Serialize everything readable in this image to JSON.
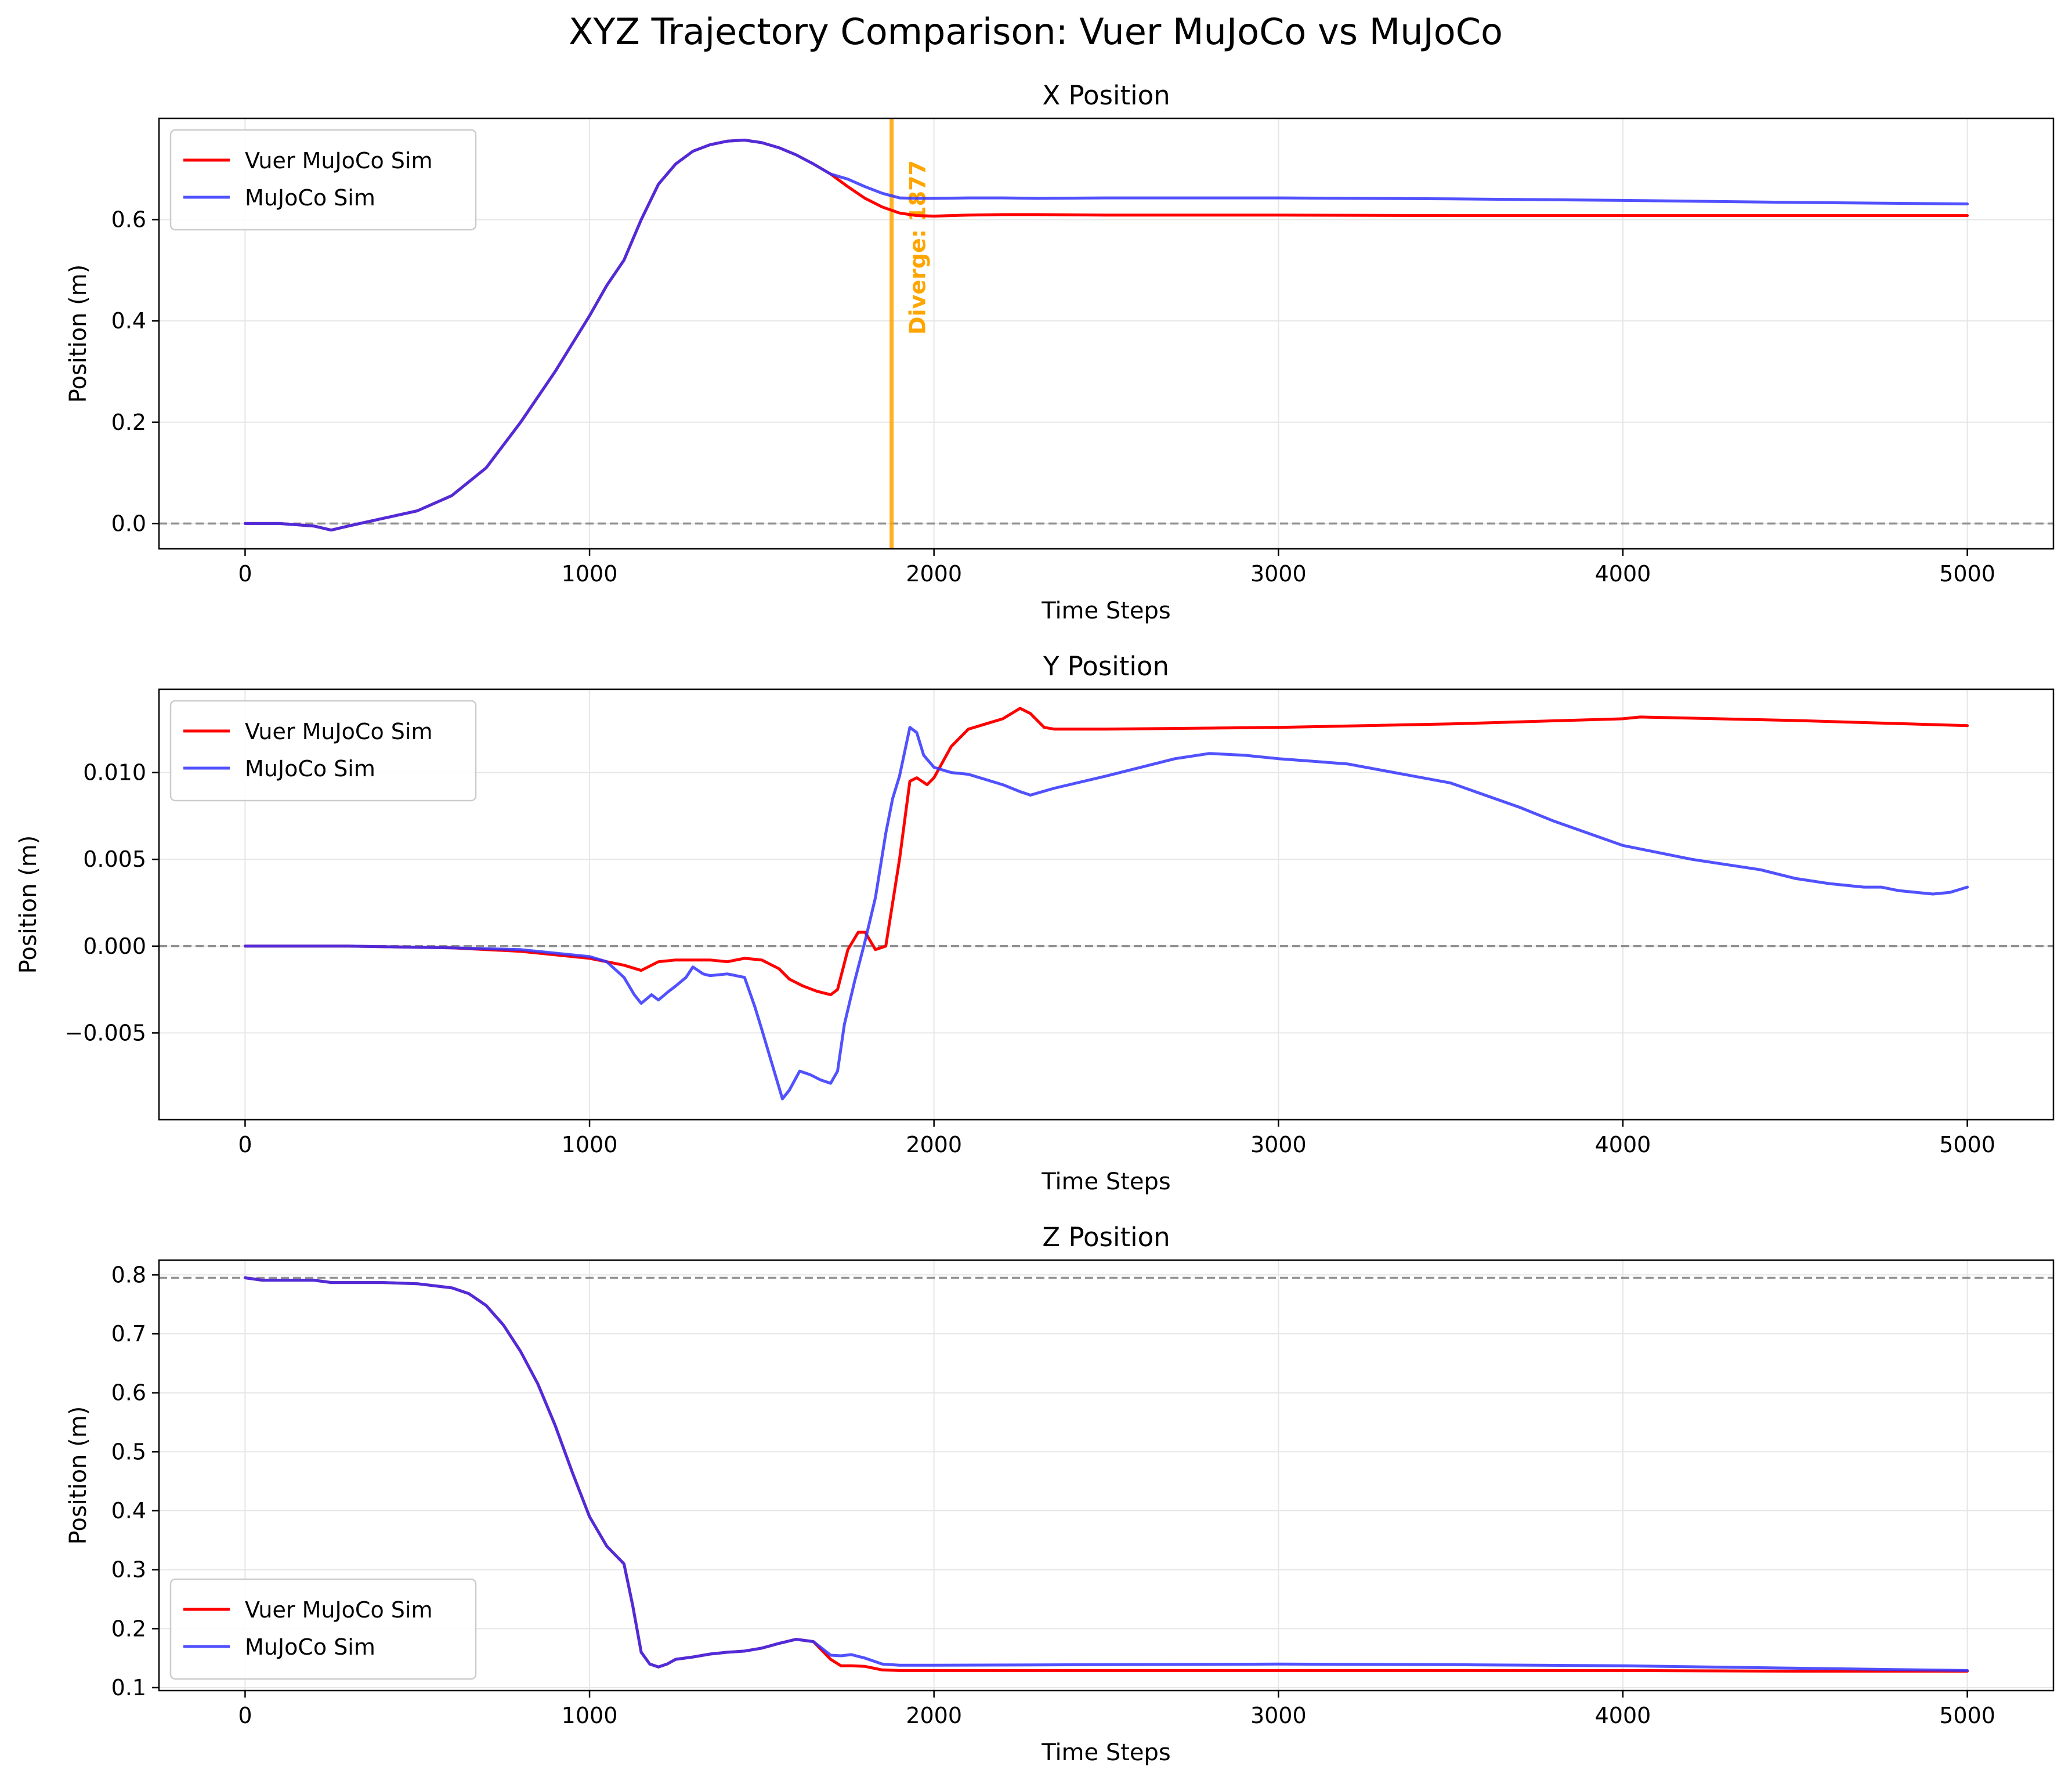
{
  "figure": {
    "title": "XYZ Trajectory Comparison: Vuer MuJoCo vs MuJoCo"
  },
  "colors": {
    "vuer": "#ff0000",
    "mujoco": "#3333ff",
    "overlap": "#5500cc",
    "diverge": "#ffa500",
    "reference": "#808080",
    "grid": "#e6e6e6",
    "axis": "#000000"
  },
  "chart_data": [
    {
      "type": "line",
      "title": "X Position",
      "xlabel": "Time Steps",
      "ylabel": "Position (m)",
      "xlim": [
        -250,
        5250
      ],
      "ylim": [
        -0.05,
        0.8
      ],
      "xticks": [
        0,
        1000,
        2000,
        3000,
        4000,
        5000
      ],
      "yticks": [
        0.0,
        0.2,
        0.4,
        0.6
      ],
      "ytick_labels": [
        "0.0",
        "0.2",
        "0.4",
        "0.6"
      ],
      "grid": true,
      "legend": "upper left",
      "reference_line": {
        "y": 0.0,
        "style": "dashed"
      },
      "vline": {
        "x": 1877,
        "label": "Diverge: 1877"
      },
      "series": [
        {
          "name": "Vuer MuJoCo Sim",
          "x": [
            0,
            100,
            200,
            250,
            300,
            400,
            500,
            600,
            700,
            800,
            900,
            1000,
            1050,
            1100,
            1150,
            1200,
            1250,
            1300,
            1350,
            1400,
            1450,
            1500,
            1550,
            1600,
            1650,
            1700,
            1750,
            1800,
            1850,
            1900,
            1950,
            2000,
            2100,
            2200,
            2300,
            2500,
            3000,
            3500,
            4000,
            4500,
            5000
          ],
          "y": [
            0.0,
            0.0,
            -0.005,
            -0.013,
            -0.005,
            0.01,
            0.025,
            0.055,
            0.11,
            0.2,
            0.3,
            0.41,
            0.47,
            0.52,
            0.6,
            0.67,
            0.71,
            0.735,
            0.748,
            0.755,
            0.757,
            0.752,
            0.742,
            0.728,
            0.71,
            0.69,
            0.665,
            0.642,
            0.625,
            0.613,
            0.608,
            0.607,
            0.609,
            0.61,
            0.61,
            0.609,
            0.609,
            0.608,
            0.608,
            0.608,
            0.608
          ]
        },
        {
          "name": "MuJoCo Sim",
          "x": [
            0,
            100,
            200,
            250,
            300,
            400,
            500,
            600,
            700,
            800,
            900,
            1000,
            1050,
            1100,
            1150,
            1200,
            1250,
            1300,
            1350,
            1400,
            1450,
            1500,
            1550,
            1600,
            1650,
            1700,
            1750,
            1800,
            1850,
            1900,
            1950,
            2000,
            2100,
            2200,
            2300,
            2500,
            3000,
            3500,
            4000,
            4500,
            5000
          ],
          "y": [
            0.0,
            0.0,
            -0.005,
            -0.013,
            -0.005,
            0.01,
            0.025,
            0.055,
            0.11,
            0.2,
            0.3,
            0.41,
            0.47,
            0.52,
            0.6,
            0.67,
            0.71,
            0.735,
            0.748,
            0.755,
            0.757,
            0.752,
            0.742,
            0.728,
            0.71,
            0.69,
            0.68,
            0.665,
            0.652,
            0.643,
            0.642,
            0.642,
            0.643,
            0.643,
            0.642,
            0.643,
            0.643,
            0.641,
            0.638,
            0.634,
            0.631
          ]
        }
      ]
    },
    {
      "type": "line",
      "title": "Y Position",
      "xlabel": "Time Steps",
      "ylabel": "Position (m)",
      "xlim": [
        -250,
        5250
      ],
      "ylim": [
        -0.01,
        0.0148
      ],
      "xticks": [
        0,
        1000,
        2000,
        3000,
        4000,
        5000
      ],
      "yticks": [
        -0.005,
        0.0,
        0.005,
        0.01
      ],
      "ytick_labels": [
        "−0.005",
        "0.000",
        "0.005",
        "0.010"
      ],
      "grid": true,
      "legend": "upper left",
      "reference_line": {
        "y": 0.0,
        "style": "dashed"
      },
      "series": [
        {
          "name": "Vuer MuJoCo Sim",
          "x": [
            0,
            300,
            600,
            800,
            900,
            1000,
            1100,
            1150,
            1200,
            1250,
            1300,
            1350,
            1400,
            1450,
            1500,
            1550,
            1580,
            1620,
            1660,
            1700,
            1720,
            1750,
            1780,
            1800,
            1830,
            1860,
            1900,
            1930,
            1950,
            1980,
            2000,
            2050,
            2100,
            2150,
            2200,
            2250,
            2280,
            2320,
            2350,
            2500,
            3000,
            3500,
            4000,
            4050,
            4500,
            5000
          ],
          "y": [
            0.0,
            0.0,
            -0.0001,
            -0.0003,
            -0.0005,
            -0.0007,
            -0.0011,
            -0.0014,
            -0.0009,
            -0.0008,
            -0.0008,
            -0.0008,
            -0.0009,
            -0.0007,
            -0.0008,
            -0.0013,
            -0.0019,
            -0.0023,
            -0.0026,
            -0.0028,
            -0.0025,
            -0.0002,
            0.0008,
            0.0008,
            -0.0002,
            0.0,
            0.005,
            0.0095,
            0.0097,
            0.0093,
            0.0097,
            0.0115,
            0.0125,
            0.0128,
            0.0131,
            0.0137,
            0.0134,
            0.0126,
            0.0125,
            0.0125,
            0.0126,
            0.0128,
            0.0131,
            0.0132,
            0.013,
            0.0127
          ]
        },
        {
          "name": "MuJoCo Sim",
          "x": [
            0,
            300,
            600,
            800,
            900,
            1000,
            1050,
            1100,
            1130,
            1150,
            1180,
            1200,
            1230,
            1250,
            1280,
            1300,
            1330,
            1350,
            1400,
            1450,
            1480,
            1500,
            1530,
            1560,
            1580,
            1610,
            1640,
            1670,
            1700,
            1720,
            1740,
            1770,
            1800,
            1830,
            1860,
            1880,
            1900,
            1930,
            1950,
            1970,
            2000,
            2050,
            2100,
            2150,
            2200,
            2250,
            2280,
            2350,
            2500,
            2700,
            2800,
            2900,
            3000,
            3200,
            3500,
            3700,
            3800,
            4000,
            4200,
            4400,
            4500,
            4600,
            4700,
            4750,
            4800,
            4900,
            4950,
            5000
          ],
          "y": [
            0.0,
            0.0,
            -0.0001,
            -0.0002,
            -0.0004,
            -0.0006,
            -0.0009,
            -0.0018,
            -0.0028,
            -0.0033,
            -0.0028,
            -0.0031,
            -0.0026,
            -0.0023,
            -0.0018,
            -0.0012,
            -0.0016,
            -0.0017,
            -0.0016,
            -0.0018,
            -0.0035,
            -0.0048,
            -0.0068,
            -0.0088,
            -0.0083,
            -0.0072,
            -0.0074,
            -0.0077,
            -0.0079,
            -0.0072,
            -0.0045,
            -0.002,
            0.0003,
            0.0028,
            0.0065,
            0.0085,
            0.0098,
            0.0126,
            0.0123,
            0.011,
            0.0103,
            0.01,
            0.0099,
            0.0096,
            0.0093,
            0.0089,
            0.0087,
            0.0091,
            0.0098,
            0.0108,
            0.0111,
            0.011,
            0.0108,
            0.0105,
            0.0094,
            0.008,
            0.0072,
            0.0058,
            0.005,
            0.0044,
            0.0039,
            0.0036,
            0.0034,
            0.0034,
            0.0032,
            0.003,
            0.0031,
            0.0034
          ]
        }
      ]
    },
    {
      "type": "line",
      "title": "Z Position",
      "xlabel": "Time Steps",
      "ylabel": "Position (m)",
      "xlim": [
        -250,
        5250
      ],
      "ylim": [
        0.095,
        0.825
      ],
      "xticks": [
        0,
        1000,
        2000,
        3000,
        4000,
        5000
      ],
      "yticks": [
        0.1,
        0.2,
        0.3,
        0.4,
        0.5,
        0.6,
        0.7,
        0.8
      ],
      "ytick_labels": [
        "0.1",
        "0.2",
        "0.3",
        "0.4",
        "0.5",
        "0.6",
        "0.7",
        "0.8"
      ],
      "grid": true,
      "legend": "lower left",
      "reference_line": {
        "y": 0.795,
        "style": "dashed"
      },
      "series": [
        {
          "name": "Vuer MuJoCo Sim",
          "x": [
            0,
            50,
            200,
            250,
            400,
            500,
            600,
            650,
            700,
            750,
            800,
            850,
            900,
            950,
            1000,
            1050,
            1100,
            1125,
            1150,
            1175,
            1200,
            1225,
            1250,
            1300,
            1350,
            1400,
            1450,
            1500,
            1550,
            1600,
            1650,
            1700,
            1730,
            1760,
            1800,
            1850,
            1900,
            2000,
            2500,
            3000,
            3500,
            4000,
            4500,
            5000
          ],
          "y": [
            0.795,
            0.791,
            0.791,
            0.787,
            0.787,
            0.785,
            0.778,
            0.768,
            0.748,
            0.715,
            0.67,
            0.615,
            0.545,
            0.465,
            0.39,
            0.34,
            0.31,
            0.24,
            0.16,
            0.14,
            0.135,
            0.14,
            0.148,
            0.152,
            0.157,
            0.16,
            0.162,
            0.167,
            0.175,
            0.182,
            0.178,
            0.148,
            0.137,
            0.137,
            0.136,
            0.13,
            0.129,
            0.129,
            0.129,
            0.129,
            0.129,
            0.129,
            0.128,
            0.128
          ]
        },
        {
          "name": "MuJoCo Sim",
          "x": [
            0,
            50,
            200,
            250,
            400,
            500,
            600,
            650,
            700,
            750,
            800,
            850,
            900,
            950,
            1000,
            1050,
            1100,
            1125,
            1150,
            1175,
            1200,
            1225,
            1250,
            1300,
            1350,
            1400,
            1450,
            1500,
            1550,
            1600,
            1650,
            1700,
            1730,
            1760,
            1800,
            1850,
            1900,
            2000,
            2500,
            3000,
            3500,
            4000,
            4500,
            5000
          ],
          "y": [
            0.795,
            0.791,
            0.791,
            0.787,
            0.787,
            0.785,
            0.778,
            0.768,
            0.748,
            0.715,
            0.67,
            0.615,
            0.545,
            0.465,
            0.39,
            0.34,
            0.31,
            0.24,
            0.16,
            0.14,
            0.135,
            0.14,
            0.148,
            0.152,
            0.157,
            0.16,
            0.162,
            0.167,
            0.175,
            0.182,
            0.178,
            0.155,
            0.154,
            0.156,
            0.15,
            0.14,
            0.138,
            0.138,
            0.139,
            0.14,
            0.139,
            0.137,
            0.133,
            0.129
          ]
        }
      ]
    }
  ]
}
